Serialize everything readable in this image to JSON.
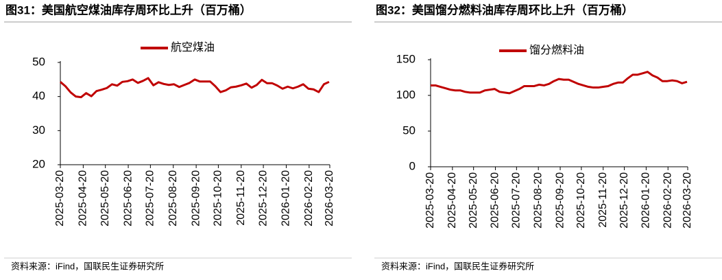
{
  "chart_data": [
    {
      "type": "line",
      "title": "图31：美国航空煤油库存周环比上升（百万桶）",
      "source": "资料来源：iFind，国联民生证券研究所",
      "x": [
        "2025-03-20",
        "2025-03-27",
        "2025-04-03",
        "2025-04-10",
        "2025-04-17",
        "2025-04-24",
        "2025-05-01",
        "2025-05-08",
        "2025-05-15",
        "2025-05-22",
        "2025-05-29",
        "2025-06-05",
        "2025-06-12",
        "2025-06-19",
        "2025-06-26",
        "2025-07-03",
        "2025-07-10",
        "2025-07-17",
        "2025-07-24",
        "2025-07-31",
        "2025-08-07",
        "2025-08-14",
        "2025-08-21",
        "2025-08-28",
        "2025-09-04",
        "2025-09-11",
        "2025-09-18",
        "2025-09-25",
        "2025-10-02",
        "2025-10-09",
        "2025-10-16",
        "2025-10-23",
        "2025-10-30",
        "2025-11-06",
        "2025-11-13",
        "2025-11-20",
        "2025-11-27",
        "2025-12-04",
        "2025-12-11",
        "2025-12-18",
        "2025-12-25",
        "2026-01-01",
        "2026-01-08",
        "2026-01-15",
        "2026-01-22",
        "2026-01-29",
        "2026-02-05",
        "2026-02-12",
        "2026-02-19",
        "2026-02-26",
        "2026-03-05",
        "2026-03-12",
        "2026-03-19"
      ],
      "series": [
        {
          "name": "航空煤油",
          "color": "#c00000",
          "values": [
            44.3,
            43.0,
            41.2,
            40.0,
            39.8,
            41.0,
            40.1,
            41.6,
            42.0,
            42.5,
            43.6,
            43.2,
            44.3,
            44.5,
            45.0,
            44.0,
            44.6,
            45.4,
            43.3,
            44.2,
            43.7,
            43.4,
            43.6,
            42.8,
            43.4,
            44.0,
            45.0,
            44.4,
            44.4,
            44.4,
            43.0,
            41.3,
            41.8,
            42.7,
            42.9,
            43.3,
            43.8,
            42.6,
            43.4,
            44.9,
            43.9,
            43.9,
            43.2,
            42.3,
            42.9,
            42.4,
            42.9,
            43.6,
            42.3,
            42.1,
            41.3,
            43.6,
            44.3
          ]
        }
      ],
      "xlim": [
        "2025-03-20",
        "2026-03-20"
      ],
      "xticks": [
        "2025-03-20",
        "2025-04-20",
        "2025-05-20",
        "2025-06-20",
        "2025-07-20",
        "2025-08-20",
        "2025-09-20",
        "2025-10-20",
        "2025-11-20",
        "2025-12-20",
        "2026-01-20",
        "2026-02-20",
        "2026-03-20"
      ],
      "ylim": [
        20,
        50
      ],
      "yticks": [
        20,
        30,
        40,
        50
      ],
      "grid": false,
      "legend": "top"
    },
    {
      "type": "line",
      "title": "图32：美国馏分燃料油库存周环比上升（百万桶）",
      "source": "资料来源：iFind，国联民生证券研究所",
      "x": [
        "2025-03-20",
        "2025-03-27",
        "2025-04-03",
        "2025-04-10",
        "2025-04-17",
        "2025-04-24",
        "2025-05-01",
        "2025-05-08",
        "2025-05-15",
        "2025-05-22",
        "2025-05-29",
        "2025-06-05",
        "2025-06-12",
        "2025-06-19",
        "2025-06-26",
        "2025-07-03",
        "2025-07-10",
        "2025-07-17",
        "2025-07-24",
        "2025-07-31",
        "2025-08-07",
        "2025-08-14",
        "2025-08-21",
        "2025-08-28",
        "2025-09-04",
        "2025-09-11",
        "2025-09-18",
        "2025-09-25",
        "2025-10-02",
        "2025-10-09",
        "2025-10-16",
        "2025-10-23",
        "2025-10-30",
        "2025-11-06",
        "2025-11-13",
        "2025-11-20",
        "2025-11-27",
        "2025-12-04",
        "2025-12-11",
        "2025-12-18",
        "2025-12-25",
        "2026-01-01",
        "2026-01-08",
        "2026-01-15",
        "2026-01-22",
        "2026-01-29",
        "2026-02-05",
        "2026-02-12",
        "2026-02-19",
        "2026-02-26",
        "2026-03-05",
        "2026-03-12",
        "2026-03-19"
      ],
      "series": [
        {
          "name": "馏分燃料油",
          "color": "#c00000",
          "values": [
            114,
            114,
            112,
            110,
            108,
            107,
            107,
            105,
            104,
            104,
            104,
            107,
            108,
            109,
            105,
            104,
            103,
            106,
            109,
            113,
            113,
            113,
            115,
            114,
            116,
            120,
            123,
            122,
            122,
            119,
            116,
            114,
            112,
            111,
            111,
            112,
            113,
            116,
            118,
            118,
            124,
            129,
            129,
            131,
            133,
            128,
            125,
            120,
            120,
            121,
            120,
            117,
            119
          ]
        }
      ],
      "xlim": [
        "2025-03-20",
        "2026-03-20"
      ],
      "xticks": [
        "2025-03-20",
        "2025-04-20",
        "2025-05-20",
        "2025-06-20",
        "2025-07-20",
        "2025-08-20",
        "2025-09-20",
        "2025-10-20",
        "2025-11-20",
        "2025-12-20",
        "2026-01-20",
        "2026-02-20",
        "2026-03-20"
      ],
      "ylim": [
        0,
        150
      ],
      "yticks": [
        0,
        50,
        100,
        150
      ],
      "grid": false,
      "legend": "top"
    }
  ]
}
